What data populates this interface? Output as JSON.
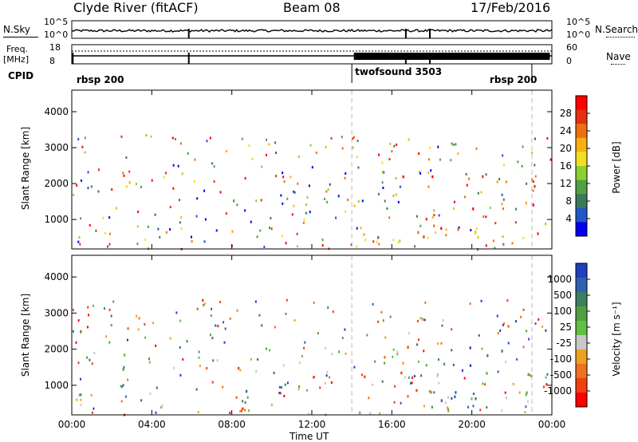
{
  "header": {
    "station": "Clyde River (fitACF)",
    "beam": "Beam 08",
    "date": "17/Feb/2016"
  },
  "noise_panel": {
    "left_label": "N.Sky",
    "left_ticks": [
      "10^5",
      "10^0"
    ],
    "right_label": "N.Search",
    "right_ticks": [
      "10^5",
      "10^0"
    ]
  },
  "freq_panel": {
    "left_label_line1": "Freq.",
    "left_label_line2": "[MHz]",
    "left_ticks": [
      "18",
      "8"
    ],
    "right_label": "Nave",
    "right_ticks": [
      "60",
      "0"
    ]
  },
  "cpid": {
    "label": "CPID",
    "segments": [
      {
        "name": "rbsp 200",
        "start_hour": 0,
        "end_hour": 14.0
      },
      {
        "name": "twofsound 3503",
        "start_hour": 14.0,
        "end_hour": 23.0
      },
      {
        "name": "rbsp 200",
        "start_hour": 23.0,
        "end_hour": 24.0
      }
    ]
  },
  "chart_data": [
    {
      "type": "heatmap",
      "title": "",
      "ylabel": "Slant Range [km]",
      "xlabel": "",
      "xlim_hours": [
        0,
        24
      ],
      "ylim": [
        180,
        4600
      ],
      "yticks": [
        "1000",
        "2000",
        "3000",
        "4000"
      ],
      "colorbar": {
        "label": "Power [dB]",
        "ticks": [
          "4",
          "8",
          "12",
          "16",
          "20",
          "24",
          "28"
        ],
        "colors": [
          "#0000ee",
          "#2255c8",
          "#3a7a5a",
          "#52a044",
          "#8cd030",
          "#f0e020",
          "#f8b010",
          "#f07010",
          "#e83010",
          "#ff0000"
        ]
      },
      "echo_regions": [
        {
          "t0": 1.8,
          "t1": 3.0,
          "r0": 1200,
          "r1": 2900,
          "level": 0.55
        },
        {
          "t0": 6.8,
          "t1": 7.1,
          "r0": 2900,
          "r1": 3200,
          "level": 0.35
        },
        {
          "t0": 7.8,
          "t1": 8.5,
          "r0": 1400,
          "r1": 2300,
          "level": 0.55
        },
        {
          "t0": 7.2,
          "t1": 9.0,
          "r0": 200,
          "r1": 900,
          "level": 0.75
        },
        {
          "t0": 14.0,
          "t1": 24.0,
          "r0": 500,
          "r1": 2300,
          "level": 0.85
        },
        {
          "t0": 14.0,
          "t1": 24.0,
          "r0": 200,
          "r1": 700,
          "level": 0.45
        }
      ]
    },
    {
      "type": "heatmap",
      "title": "",
      "ylabel": "Slant Range [km]",
      "xlabel": "Time UT",
      "xlim_hours": [
        0,
        24
      ],
      "ylim": [
        180,
        4600
      ],
      "xticks": [
        "00:00",
        "04:00",
        "08:00",
        "12:00",
        "16:00",
        "20:00",
        "00:00"
      ],
      "yticks": [
        "1000",
        "2000",
        "3000",
        "4000"
      ],
      "colorbar": {
        "label": "Velocity [m s⁻¹]",
        "ticks": [
          "1000",
          "500",
          "100",
          "25",
          "-25",
          "-100",
          "-500",
          "-1000"
        ],
        "colors": [
          "#2040c0",
          "#3060b0",
          "#3a8060",
          "#50a040",
          "#60c040",
          "#c8c8c8",
          "#f0a020",
          "#f07020",
          "#f04010",
          "#ff0000"
        ]
      },
      "echo_regions": [
        {
          "t0": 1.8,
          "t1": 3.0,
          "r0": 1200,
          "r1": 2900,
          "level": 0.3
        },
        {
          "t0": 6.8,
          "t1": 7.1,
          "r0": 2900,
          "r1": 3200,
          "level": 0.6
        },
        {
          "t0": 7.8,
          "t1": 8.5,
          "r0": 1400,
          "r1": 2300,
          "level": 0.7
        },
        {
          "t0": 7.2,
          "t1": 9.0,
          "r0": 200,
          "r1": 900,
          "level": 0.4
        },
        {
          "t0": 14.0,
          "t1": 18.5,
          "r0": 500,
          "r1": 2300,
          "level": 0.75
        },
        {
          "t0": 18.5,
          "t1": 24.0,
          "r0": 500,
          "r1": 2300,
          "level": 0.25
        },
        {
          "t0": 14.0,
          "t1": 24.0,
          "r0": 200,
          "r1": 700,
          "level": 0.35
        }
      ]
    }
  ]
}
